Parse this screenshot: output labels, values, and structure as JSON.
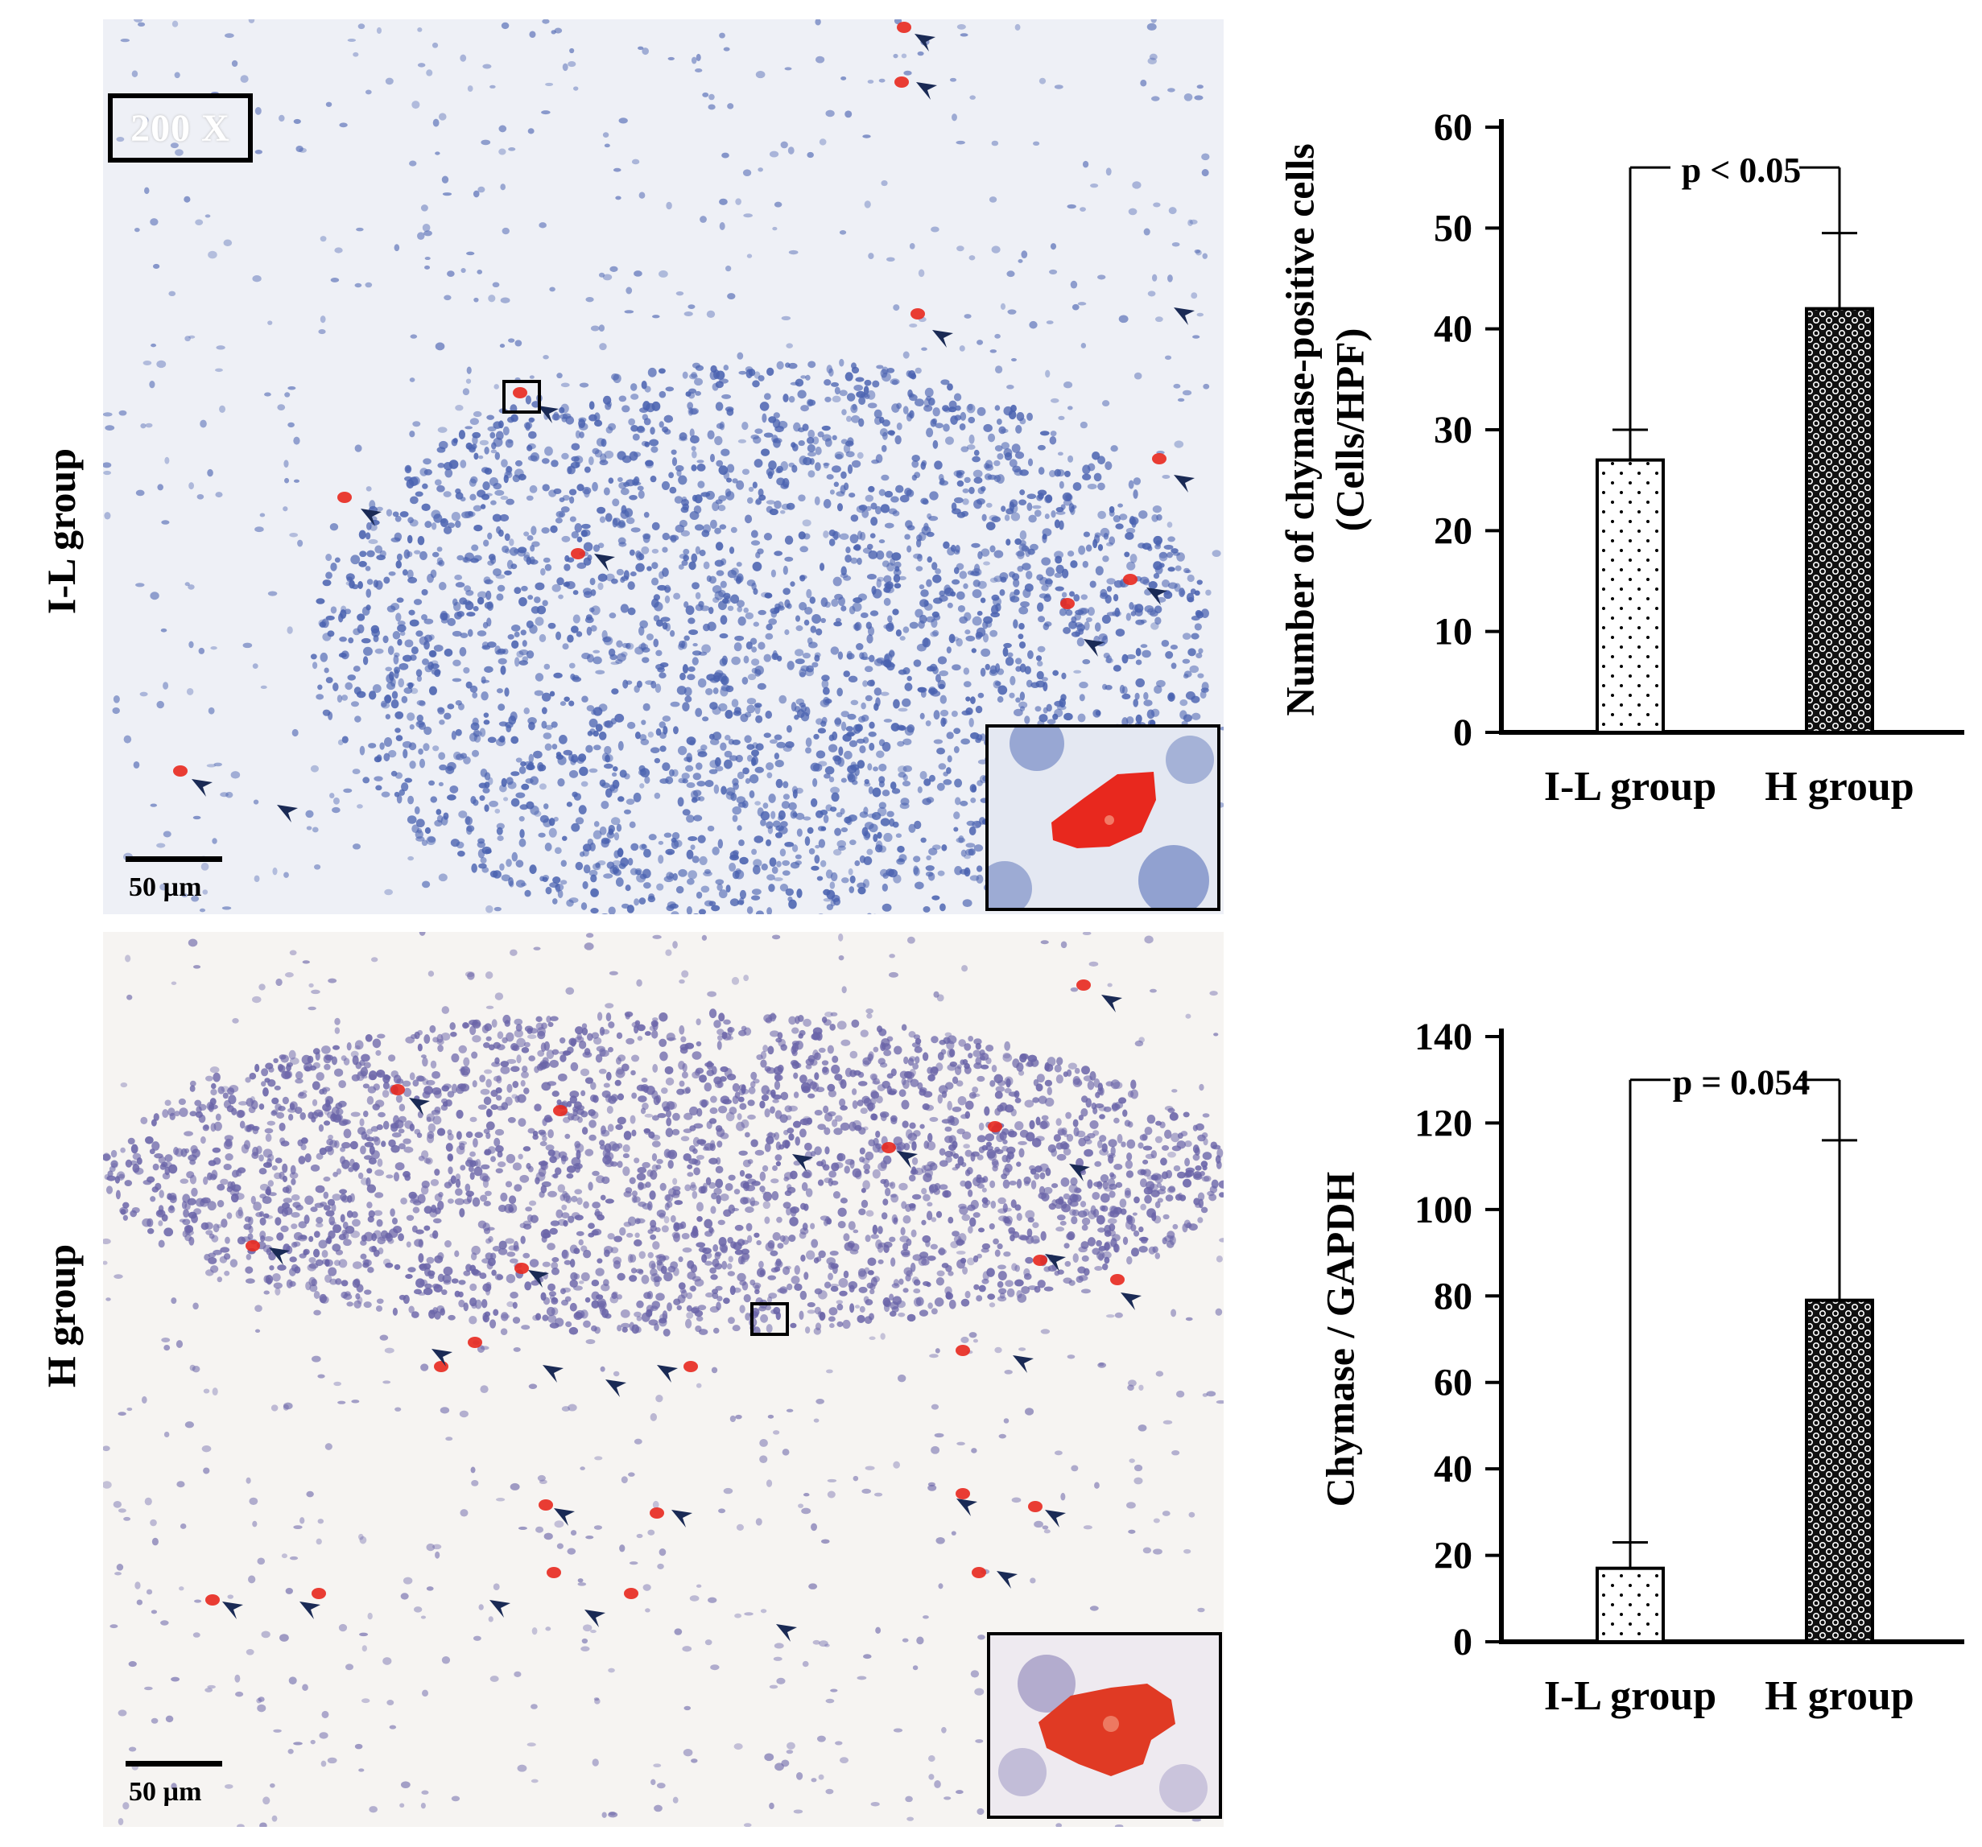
{
  "micrographs": {
    "top": {
      "row_label": "I-L group",
      "magnification": "200 X",
      "scale_label": "50 µm"
    },
    "bottom": {
      "row_label": "H group",
      "scale_label": "50 µm"
    }
  },
  "colors": {
    "stain_red": "#e8281e",
    "nuclei_blue": "#4a62b0",
    "nuclei_purple": "#6a64a8",
    "arrow": "#1a2a55"
  },
  "chart_data": [
    {
      "type": "bar",
      "ylabel": "Number of chymase-positive cells (Cells/HPF)",
      "ylabel_lines": [
        "Number of chymase-positive cells",
        "(Cells/HPF)"
      ],
      "categories": [
        "I-L group",
        "H group"
      ],
      "values": [
        27,
        42
      ],
      "error_bars": [
        3,
        7.5
      ],
      "bar_patterns": [
        "dots",
        "checker"
      ],
      "ylim": [
        0,
        60
      ],
      "yticks": [
        0,
        10,
        20,
        30,
        40,
        50,
        60
      ],
      "annotation": "p < 0.05"
    },
    {
      "type": "bar",
      "ylabel": "Chymase / GAPDH",
      "categories": [
        "I-L group",
        "H group"
      ],
      "values": [
        17,
        79
      ],
      "error_bars": [
        6,
        37
      ],
      "bar_patterns": [
        "dots",
        "checker"
      ],
      "ylim": [
        0,
        140
      ],
      "yticks": [
        0,
        20,
        40,
        60,
        80,
        100,
        120,
        140
      ],
      "annotation": "p = 0.054"
    }
  ]
}
